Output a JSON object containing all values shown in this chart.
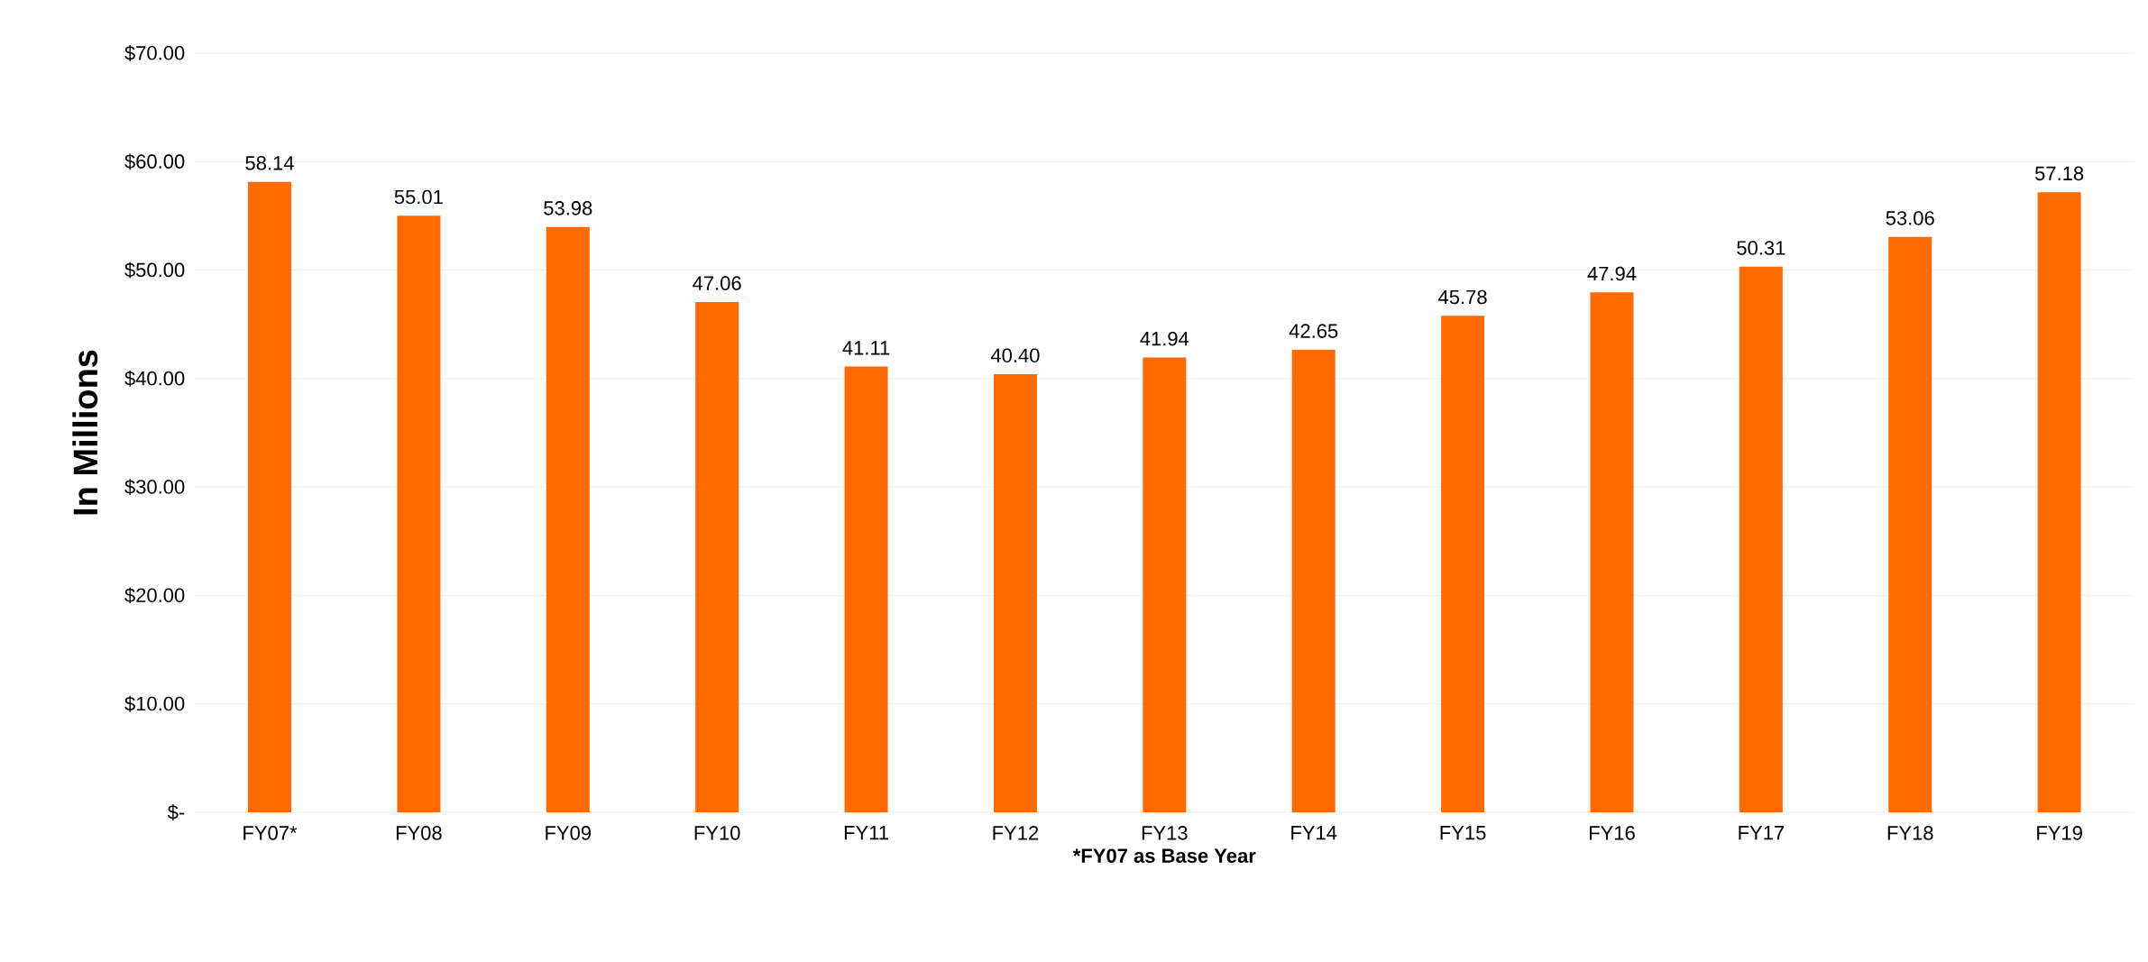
{
  "chart_data": {
    "type": "bar",
    "ylabel": "In Millions",
    "xlabel": "*FY07 as Base Year",
    "categories": [
      "FY07*",
      "FY08",
      "FY09",
      "FY10",
      "FY11",
      "FY12",
      "FY13",
      "FY14",
      "FY15",
      "FY16",
      "FY17",
      "FY18",
      "FY19"
    ],
    "values": [
      58.14,
      55.01,
      53.98,
      47.06,
      41.11,
      40.4,
      41.94,
      42.65,
      45.78,
      47.94,
      50.31,
      53.06,
      57.18
    ],
    "value_labels": [
      "58.14",
      "55.01",
      "53.98",
      "47.06",
      "41.11",
      "40.40",
      "41.94",
      "42.65",
      "45.78",
      "47.94",
      "50.31",
      "53.06",
      "57.18"
    ],
    "color": "#ff6a00",
    "ylim": [
      0,
      70
    ],
    "yticks": [
      {
        "value": 0,
        "label": "$-"
      },
      {
        "value": 10,
        "label": "$10.00"
      },
      {
        "value": 20,
        "label": "$20.00"
      },
      {
        "value": 30,
        "label": "$30.00"
      },
      {
        "value": 40,
        "label": "$40.00"
      },
      {
        "value": 50,
        "label": "$50.00"
      },
      {
        "value": 60,
        "label": "$60.00"
      },
      {
        "value": 70,
        "label": "$70.00"
      }
    ],
    "grid": "y"
  }
}
